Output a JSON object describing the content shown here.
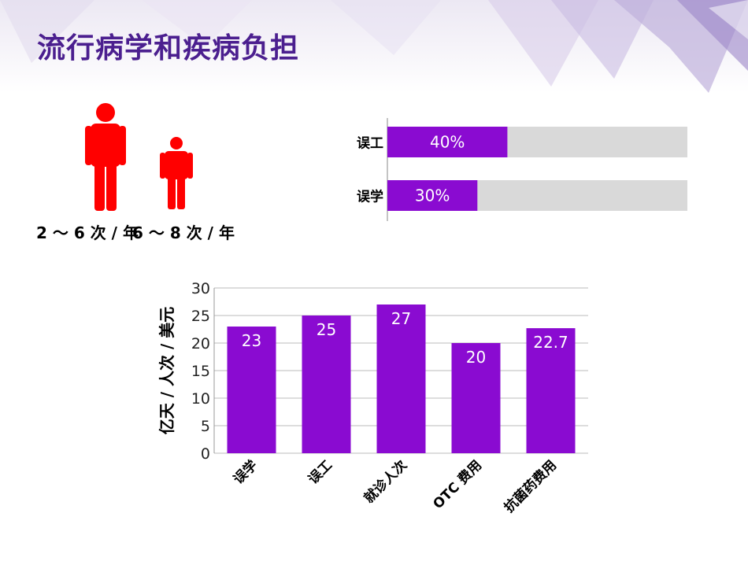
{
  "title": "流行病学和疾病负担",
  "frequencies": {
    "adult": "2 ～ 6 次 / 年",
    "child": "6 ～ 8 次 / 年"
  },
  "colors": {
    "title": "#4b1f8f",
    "bar": "#8a0bd1",
    "track": "#d9d9d9",
    "figure": "#ff0000"
  },
  "chart_data": [
    {
      "type": "bar",
      "orientation": "horizontal",
      "categories": [
        "误工",
        "误学"
      ],
      "values": [
        40,
        30
      ],
      "value_labels": [
        "40%",
        "30%"
      ],
      "xlim": [
        0,
        100
      ]
    },
    {
      "type": "bar",
      "categories": [
        "误学",
        "误工",
        "就诊人次",
        "OTC 费用",
        "抗菌药费用"
      ],
      "values": [
        23,
        25,
        27,
        20,
        22.7
      ],
      "value_labels": [
        "23",
        "25",
        "27",
        "20",
        "22.7"
      ],
      "ylabel": "亿天 / 人次 / 美元",
      "ylim": [
        0,
        30
      ],
      "yticks": [
        "0",
        "5",
        "10",
        "15",
        "20",
        "25",
        "30"
      ],
      "grid": true
    }
  ]
}
